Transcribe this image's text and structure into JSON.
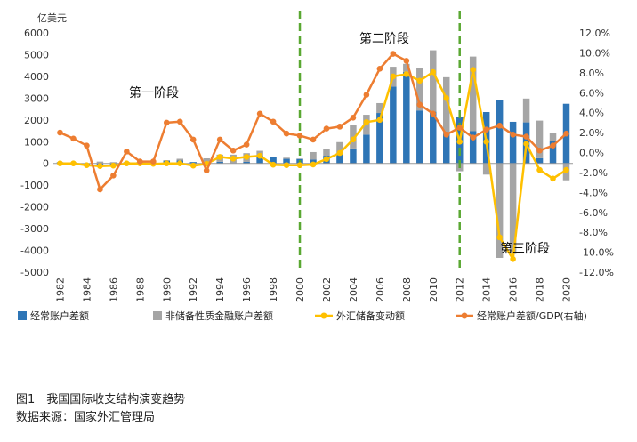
{
  "caption": {
    "figure": "图1　我国国际收支结构演变趋势",
    "source": "数据来源：国家外汇管理局"
  },
  "chart_data": {
    "type": "bar",
    "title": "",
    "left_axis_unit": "亿美元",
    "ylim": [
      -5000,
      6000
    ],
    "y_ticks": [
      -5000,
      -4000,
      -3000,
      -2000,
      -1000,
      0,
      1000,
      2000,
      3000,
      4000,
      5000,
      6000
    ],
    "y2lim": [
      -12,
      12
    ],
    "y2_ticks": [
      "12.0%",
      "10.0%",
      "8.0%",
      "6.0%",
      "4.0%",
      "2.0%",
      "0.0%",
      "-2.0%",
      "-4.0%",
      "-6.0%",
      "-8.0%",
      "-10.0%",
      "-12.0%"
    ],
    "y2_tick_values": [
      12,
      10,
      8,
      6,
      4,
      2,
      0,
      -2,
      -4,
      -6,
      -8,
      -10,
      -12
    ],
    "x": [
      1982,
      1983,
      1984,
      1985,
      1986,
      1987,
      1988,
      1989,
      1990,
      1991,
      1992,
      1993,
      1994,
      1995,
      1996,
      1997,
      1998,
      1999,
      2000,
      2001,
      2002,
      2003,
      2004,
      2005,
      2006,
      2007,
      2008,
      2009,
      2010,
      2011,
      2012,
      2013,
      2014,
      2015,
      2016,
      2017,
      2018,
      2019,
      2020
    ],
    "x_tick_labels": [
      "1982",
      "1984",
      "1986",
      "1988",
      "1990",
      "1992",
      "1994",
      "1996",
      "1998",
      "2000",
      "2002",
      "2004",
      "2006",
      "2008",
      "2010",
      "2012",
      "2014",
      "2016",
      "2018",
      "2020"
    ],
    "series": [
      {
        "name": "经常账户差额",
        "kind": "bar",
        "axis": "left",
        "color": "#2e75b6",
        "values": [
          57,
          42,
          -81,
          -114,
          -70,
          3,
          -38,
          -43,
          120,
          133,
          64,
          -119,
          77,
          16,
          72,
          370,
          315,
          211,
          205,
          174,
          354,
          431,
          689,
          1324,
          2318,
          3532,
          4206,
          2433,
          2378,
          1361,
          2154,
          1482,
          2360,
          2930,
          1913,
          1887,
          241,
          1029,
          2740
        ]
      },
      {
        "name": "非储备性质金融账户差额",
        "kind": "bar",
        "axis": "left",
        "color": "#a5a5a5",
        "values": [
          -17,
          -15,
          -38,
          85,
          59,
          60,
          71,
          37,
          32,
          80,
          -2,
          235,
          326,
          387,
          400,
          210,
          -63,
          52,
          20,
          348,
          323,
          549,
          1082,
          912,
          453,
          911,
          371,
          1945,
          2822,
          2600,
          -360,
          3430,
          -514,
          -4345,
          -4161,
          1095,
          1727,
          378,
          -778
        ]
      },
      {
        "name": "外汇储备变动额",
        "kind": "line",
        "axis": "left",
        "color": "#ffc000",
        "values": [
          0,
          0,
          -80,
          -120,
          -100,
          0,
          0,
          -20,
          0,
          0,
          -100,
          -20,
          300,
          220,
          300,
          350,
          -60,
          -80,
          -80,
          -50,
          200,
          480,
          1100,
          1900,
          2000,
          4000,
          4100,
          3800,
          4200,
          3000,
          1000,
          4300,
          1000,
          -3400,
          -4400,
          900,
          -300,
          -700,
          -300
        ]
      },
      {
        "name": "经常账户差额/GDP(右轴)",
        "kind": "line",
        "axis": "right",
        "color": "#ed7d31",
        "values": [
          2.0,
          1.4,
          0.7,
          -3.7,
          -2.3,
          0.1,
          -0.9,
          -0.9,
          3.0,
          3.1,
          1.3,
          -1.8,
          1.3,
          0.2,
          0.8,
          3.9,
          3.1,
          1.9,
          1.7,
          1.3,
          2.4,
          2.6,
          3.5,
          5.8,
          8.4,
          9.9,
          9.2,
          4.8,
          3.9,
          1.8,
          2.5,
          1.5,
          2.3,
          2.7,
          1.8,
          1.6,
          0.2,
          0.7,
          1.9
        ]
      }
    ],
    "legend_position": "bottom",
    "phase_lines": [
      2000,
      2012
    ],
    "phase_labels": [
      "第一阶段",
      "第二阶段",
      "第三阶段"
    ],
    "grid": false
  }
}
